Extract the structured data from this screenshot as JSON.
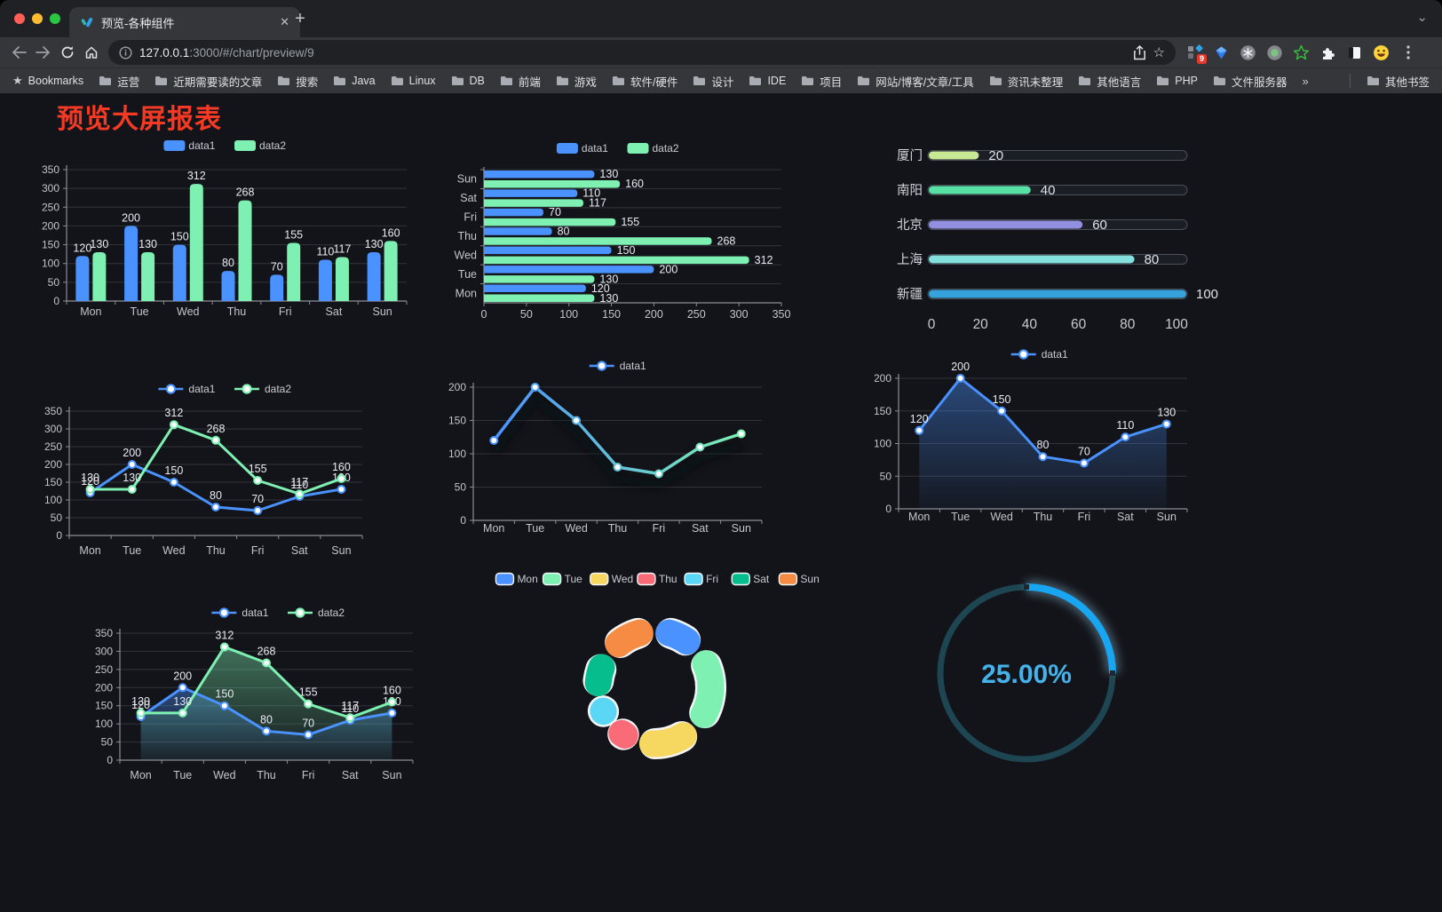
{
  "browser": {
    "tab_title": "预览-各种组件",
    "url_host": "127.0.0.1",
    "url_rest": ":3000/#/chart/preview/9",
    "bookmarks_label": "Bookmarks",
    "bookmarks": [
      "运营",
      "近期需要读的文章",
      "搜索",
      "Java",
      "Linux",
      "DB",
      "前端",
      "游戏",
      "软件/硬件",
      "设计",
      "IDE",
      "项目",
      "网站/博客/文章/工具",
      "资讯未整理",
      "其他语言",
      "PHP",
      "文件服务器"
    ],
    "overflow_chevron": "»",
    "other_bookmarks": "其他书签",
    "extension_badge": "9"
  },
  "page": {
    "title": "预览大屏报表",
    "title_color": "#f43a25"
  },
  "chart_data": [
    {
      "id": "c1",
      "type": "bar",
      "legend_position": "top",
      "grid": true,
      "categories": [
        "Mon",
        "Tue",
        "Wed",
        "Thu",
        "Fri",
        "Sat",
        "Sun"
      ],
      "series": [
        {
          "name": "data1",
          "color": "#4992ff",
          "values": [
            120,
            200,
            150,
            80,
            70,
            110,
            130
          ]
        },
        {
          "name": "data2",
          "color": "#7df0b2",
          "values": [
            130,
            130,
            312,
            268,
            155,
            117,
            160
          ]
        }
      ],
      "ylim": [
        0,
        350
      ],
      "yticks": [
        0,
        50,
        100,
        150,
        200,
        250,
        300,
        350
      ]
    },
    {
      "id": "c2",
      "type": "hbar",
      "legend_position": "top",
      "grid": true,
      "categories": [
        "Mon",
        "Tue",
        "Wed",
        "Thu",
        "Fri",
        "Sat",
        "Sun"
      ],
      "category_display_order_top_to_bottom": [
        "Sun",
        "Sat",
        "Fri",
        "Thu",
        "Wed",
        "Tue",
        "Mon"
      ],
      "series": [
        {
          "name": "data1",
          "color": "#4992ff",
          "values": [
            120,
            200,
            150,
            80,
            70,
            110,
            130
          ]
        },
        {
          "name": "data2",
          "color": "#7df0b2",
          "values": [
            130,
            130,
            312,
            268,
            155,
            117,
            160
          ]
        }
      ],
      "xlim": [
        0,
        350
      ],
      "xticks": [
        0,
        50,
        100,
        150,
        200,
        250,
        300,
        350
      ]
    },
    {
      "id": "c3",
      "type": "progress",
      "rows": [
        {
          "label": "厦门",
          "value": 20,
          "color": "#c8e896"
        },
        {
          "label": "南阳",
          "value": 40,
          "color": "#58e0a5"
        },
        {
          "label": "北京",
          "value": 60,
          "color": "#938fe0"
        },
        {
          "label": "上海",
          "value": 80,
          "color": "#83e0dd"
        },
        {
          "label": "新疆",
          "value": 100,
          "color": "#35a2db"
        }
      ],
      "xlim": [
        0,
        100
      ],
      "xticks": [
        0,
        20,
        40,
        60,
        80,
        100
      ]
    },
    {
      "id": "c4",
      "type": "line",
      "legend_position": "top",
      "grid": true,
      "point_labels": true,
      "categories": [
        "Mon",
        "Tue",
        "Wed",
        "Thu",
        "Fri",
        "Sat",
        "Sun"
      ],
      "series": [
        {
          "name": "data1",
          "color": "#4992ff",
          "values": [
            120,
            200,
            150,
            80,
            70,
            110,
            130
          ]
        },
        {
          "name": "data2",
          "color": "#7df0b2",
          "values": [
            130,
            130,
            312,
            268,
            155,
            117,
            160
          ]
        }
      ],
      "ylim": [
        0,
        350
      ],
      "yticks": [
        0,
        50,
        100,
        150,
        200,
        250,
        300,
        350
      ]
    },
    {
      "id": "c5",
      "type": "line-gradient",
      "legend_position": "top",
      "grid": true,
      "point_labels": false,
      "categories": [
        "Mon",
        "Tue",
        "Wed",
        "Thu",
        "Fri",
        "Sat",
        "Sun"
      ],
      "series": [
        {
          "name": "data1",
          "gradient": [
            "#4992ff",
            "#7df0b2"
          ],
          "values": [
            120,
            200,
            150,
            80,
            70,
            110,
            130
          ]
        }
      ],
      "ylim": [
        0,
        200
      ],
      "yticks": [
        0,
        50,
        100,
        150,
        200
      ]
    },
    {
      "id": "c6",
      "type": "area",
      "legend_position": "top",
      "grid": true,
      "point_labels": true,
      "categories": [
        "Mon",
        "Tue",
        "Wed",
        "Thu",
        "Fri",
        "Sat",
        "Sun"
      ],
      "series": [
        {
          "name": "data1",
          "color": "#4992ff",
          "values": [
            120,
            200,
            150,
            80,
            70,
            110,
            130
          ]
        }
      ],
      "ylim": [
        0,
        200
      ],
      "yticks": [
        0,
        50,
        100,
        150,
        200
      ]
    },
    {
      "id": "c7",
      "type": "area",
      "legend_position": "top",
      "grid": true,
      "point_labels": true,
      "categories": [
        "Mon",
        "Tue",
        "Wed",
        "Thu",
        "Fri",
        "Sat",
        "Sun"
      ],
      "series": [
        {
          "name": "data1",
          "color": "#4992ff",
          "values": [
            120,
            200,
            150,
            80,
            70,
            110,
            130
          ]
        },
        {
          "name": "data2",
          "color": "#7df0b2",
          "values": [
            130,
            130,
            312,
            268,
            155,
            117,
            160
          ]
        }
      ],
      "ylim": [
        0,
        350
      ],
      "yticks": [
        0,
        50,
        100,
        150,
        200,
        250,
        300,
        350
      ]
    },
    {
      "id": "c8",
      "type": "donut",
      "legend_position": "top",
      "slices": [
        {
          "name": "Mon",
          "value": 120,
          "color": "#4992ff"
        },
        {
          "name": "Tue",
          "value": 200,
          "color": "#7df0b2"
        },
        {
          "name": "Wed",
          "value": 150,
          "color": "#f6d860"
        },
        {
          "name": "Thu",
          "value": 80,
          "color": "#f96c77"
        },
        {
          "name": "Fri",
          "value": 70,
          "color": "#5cd6f5"
        },
        {
          "name": "Sat",
          "value": 110,
          "color": "#06bd8d"
        },
        {
          "name": "Sun",
          "value": 130,
          "color": "#f68c44"
        }
      ]
    },
    {
      "id": "c9",
      "type": "gauge",
      "value": 25,
      "label": "25.00%",
      "color": "#18a6f2",
      "track_color": "#1d4552",
      "text_color": "#45b2ea"
    }
  ]
}
